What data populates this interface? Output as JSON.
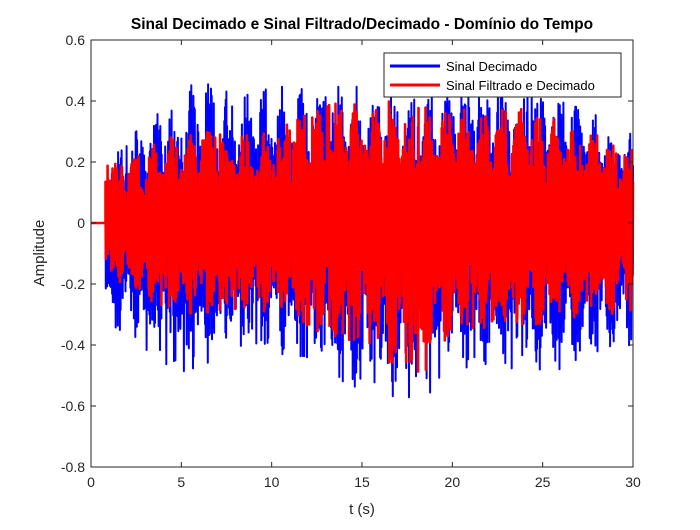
{
  "chart_data": {
    "type": "line",
    "title": "Sinal Decimado e Sinal Filtrado/Decimado - Domínio do Tempo",
    "xlabel": "t (s)",
    "ylabel": "Amplitude",
    "xlim": [
      0,
      30
    ],
    "ylim": [
      -0.8,
      0.6
    ],
    "xticks": [
      "0",
      "5",
      "10",
      "15",
      "20",
      "25",
      "30"
    ],
    "yticks": [
      "0.6",
      "0.4",
      "0.2",
      "0",
      "-0.2",
      "-0.4",
      "-0.6",
      "-0.8"
    ],
    "grid": false,
    "legend_position": "top-right",
    "series": [
      {
        "name": "Sinal Decimado",
        "color": "#0000ff",
        "signal_start_t": 0.8,
        "approx_envelope": {
          "t": [
            0.8,
            5,
            10,
            14.5,
            18.2,
            20,
            25,
            30
          ],
          "max": [
            0.2,
            0.46,
            0.45,
            0.45,
            0.42,
            0.46,
            0.45,
            0.3
          ],
          "min": [
            -0.35,
            -0.5,
            -0.42,
            -0.55,
            -0.61,
            -0.47,
            -0.5,
            -0.4
          ]
        }
      },
      {
        "name": "Sinal Filtrado e Decimado",
        "color": "#ff0000",
        "signal_start_t": 0.8,
        "approx_envelope": {
          "t": [
            0.8,
            5,
            10,
            14.5,
            18.2,
            20,
            25,
            30
          ],
          "max": [
            0.2,
            0.3,
            0.3,
            0.45,
            0.38,
            0.38,
            0.38,
            0.25
          ],
          "min": [
            -0.22,
            -0.3,
            -0.3,
            -0.4,
            -0.54,
            -0.35,
            -0.35,
            -0.3
          ]
        }
      }
    ]
  }
}
